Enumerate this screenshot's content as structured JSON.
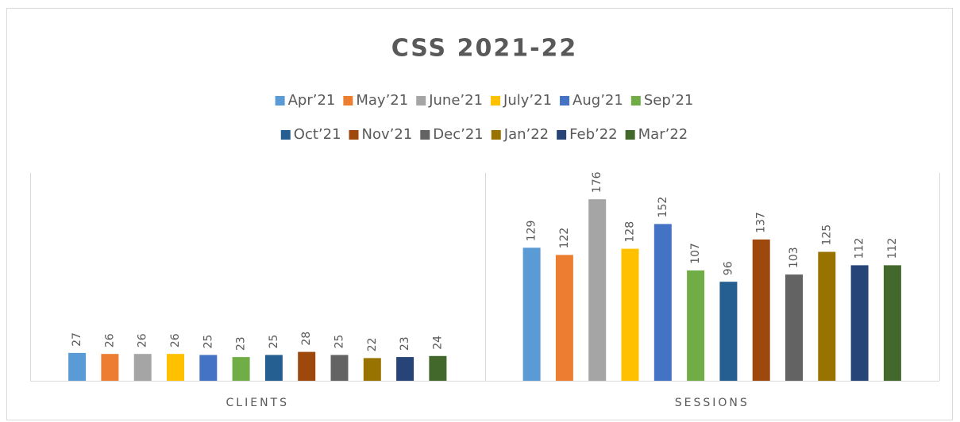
{
  "chart_data": {
    "type": "bar",
    "title": "CSS 2021-22",
    "categories": [
      "CLIENTS",
      "SESSIONS"
    ],
    "series": [
      {
        "name": "Apr’21",
        "color": "#5b9bd5",
        "values": [
          27,
          129
        ]
      },
      {
        "name": "May’21",
        "color": "#ed7d31",
        "values": [
          26,
          122
        ]
      },
      {
        "name": "June’21",
        "color": "#a5a5a5",
        "values": [
          26,
          176
        ]
      },
      {
        "name": "July’21",
        "color": "#ffc000",
        "values": [
          26,
          128
        ]
      },
      {
        "name": "Aug’21",
        "color": "#4472c4",
        "values": [
          25,
          152
        ]
      },
      {
        "name": "Sep’21",
        "color": "#70ad47",
        "values": [
          23,
          107
        ]
      },
      {
        "name": "Oct’21",
        "color": "#255e91",
        "values": [
          25,
          96
        ]
      },
      {
        "name": "Nov’21",
        "color": "#9e480e",
        "values": [
          28,
          137
        ]
      },
      {
        "name": "Dec’21",
        "color": "#636363",
        "values": [
          25,
          103
        ]
      },
      {
        "name": "Jan’22",
        "color": "#997300",
        "values": [
          22,
          125
        ]
      },
      {
        "name": "Feb’22",
        "color": "#264478",
        "values": [
          23,
          112
        ]
      },
      {
        "name": "Mar’22",
        "color": "#43682b",
        "values": [
          24,
          112
        ]
      }
    ],
    "ylim": [
      0,
      200
    ],
    "legend": "top"
  }
}
